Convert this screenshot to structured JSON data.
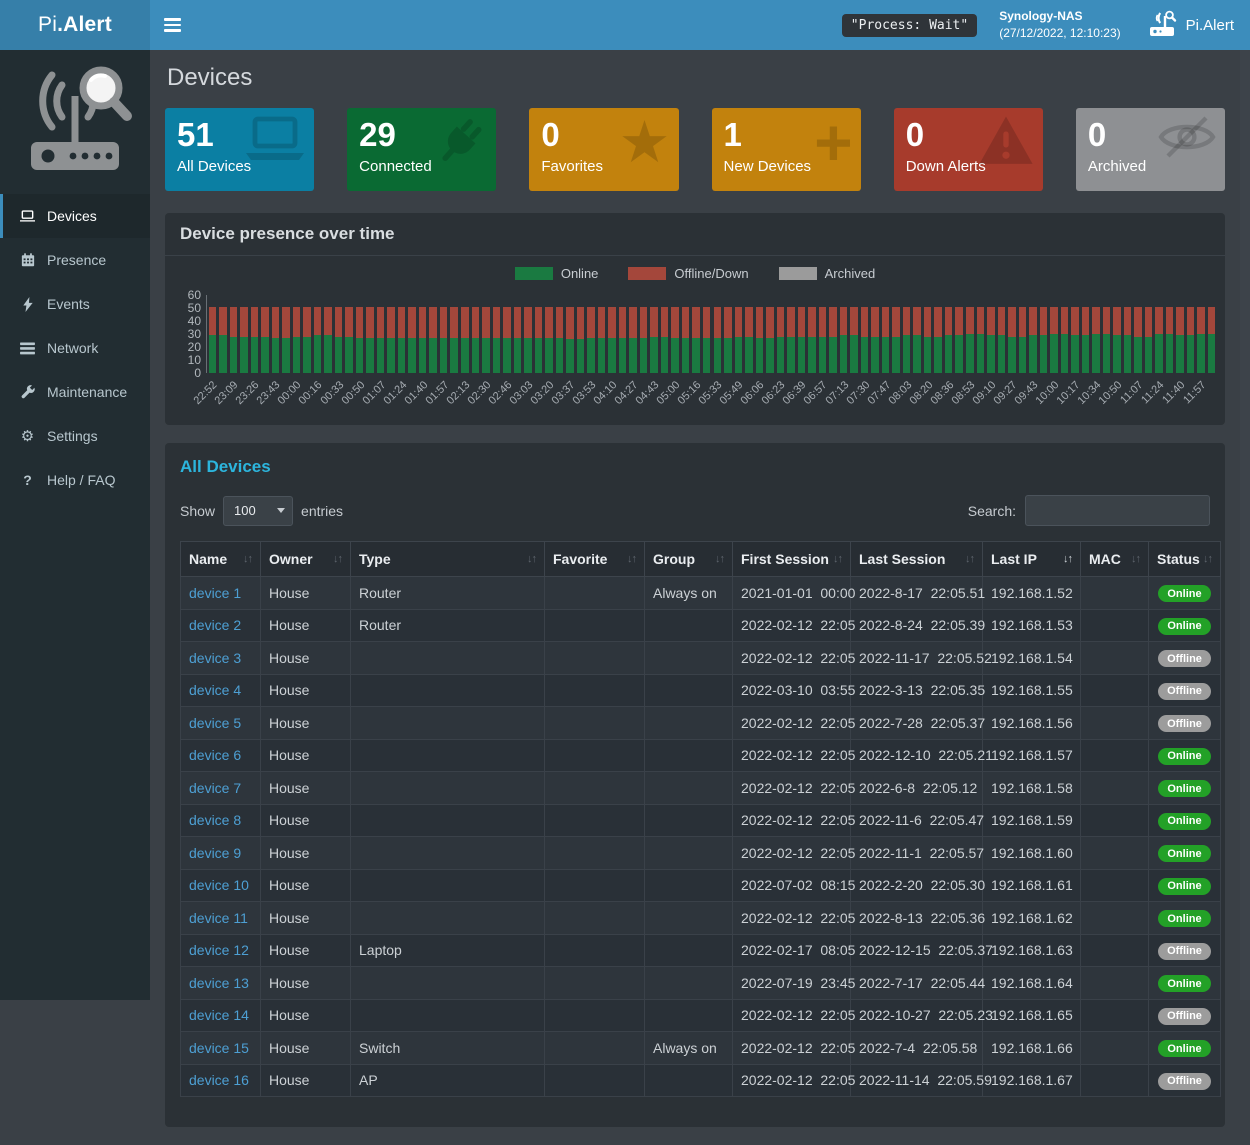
{
  "header": {
    "logo_prefix": "Pi",
    "logo_suffix": ".Alert",
    "process_badge": "\"Process: Wait\"",
    "nas_name": "Synology-NAS",
    "nas_time": "(27/12/2022, 12:10:23)",
    "brand": "Pi.Alert"
  },
  "sidebar": {
    "items": [
      {
        "label": "Devices",
        "icon": "laptop-icon",
        "active": true
      },
      {
        "label": "Presence",
        "icon": "calendar-icon",
        "active": false
      },
      {
        "label": "Events",
        "icon": "bolt-icon",
        "active": false
      },
      {
        "label": "Network",
        "icon": "network-icon",
        "active": false
      },
      {
        "label": "Maintenance",
        "icon": "wrench-icon",
        "active": false
      },
      {
        "label": "Settings",
        "icon": "gear-icon",
        "active": false
      },
      {
        "label": "Help / FAQ",
        "icon": "question-icon",
        "active": false
      }
    ]
  },
  "page": {
    "title": "Devices"
  },
  "cards": [
    {
      "value": "51",
      "label": "All Devices",
      "color": "#0b7fa3",
      "icon": "laptop-icon"
    },
    {
      "value": "29",
      "label": "Connected",
      "color": "#0a6a33",
      "icon": "plug-icon"
    },
    {
      "value": "0",
      "label": "Favorites",
      "color": "#c2820d",
      "icon": "star-icon"
    },
    {
      "value": "1",
      "label": "New Devices",
      "color": "#c2820d",
      "icon": "plus-icon"
    },
    {
      "value": "0",
      "label": "Down Alerts",
      "color": "#a73b2c",
      "icon": "warning-icon"
    },
    {
      "value": "0",
      "label": "Archived",
      "color": "#8e9093",
      "icon": "eye-slash-icon"
    }
  ],
  "chart_panel": {
    "title": "Device presence over time"
  },
  "chart_data": {
    "type": "bar",
    "stacked": true,
    "title": "Device presence over time",
    "legend_position": "top-center",
    "ylim": [
      0,
      60
    ],
    "yticks": [
      0,
      10,
      20,
      30,
      40,
      50,
      60
    ],
    "tick_every": 2,
    "x_tick_labels": [
      "22:52",
      "23:09",
      "23:26",
      "23:43",
      "00:00",
      "00:16",
      "00:33",
      "00:50",
      "01:07",
      "01:24",
      "01:40",
      "01:57",
      "02:13",
      "02:30",
      "02:46",
      "03:03",
      "03:20",
      "03:37",
      "03:53",
      "04:10",
      "04:27",
      "04:43",
      "05:00",
      "05:16",
      "05:33",
      "05:49",
      "06:06",
      "06:23",
      "06:39",
      "06:57",
      "07:13",
      "07:30",
      "07:47",
      "08:03",
      "08:20",
      "08:36",
      "08:53",
      "09:10",
      "09:27",
      "09:43",
      "10:00",
      "10:17",
      "10:34",
      "10:50",
      "11:07",
      "11:24",
      "11:40",
      "11:57"
    ],
    "series": [
      {
        "name": "Online",
        "color": "#1a7a41",
        "values": [
          29,
          29,
          28,
          28,
          28,
          28,
          27,
          27,
          28,
          28,
          29,
          29,
          28,
          28,
          27,
          27,
          27,
          27,
          27,
          27,
          27,
          27,
          27,
          27,
          27,
          27,
          27,
          27,
          27,
          27,
          27,
          27,
          27,
          27,
          26,
          26,
          27,
          27,
          27,
          27,
          27,
          27,
          28,
          28,
          27,
          27,
          27,
          27,
          27,
          27,
          28,
          28,
          27,
          27,
          28,
          28,
          28,
          28,
          28,
          28,
          29,
          29,
          28,
          28,
          28,
          28,
          29,
          29,
          28,
          28,
          29,
          29,
          30,
          30,
          29,
          29,
          28,
          28,
          29,
          29,
          30,
          30,
          29,
          29,
          30,
          30,
          29,
          29,
          28,
          28,
          30,
          30,
          29,
          29,
          30,
          30
        ]
      },
      {
        "name": "Offline/Down",
        "color": "#a4473b",
        "values": [
          22,
          22,
          23,
          23,
          23,
          23,
          24,
          24,
          23,
          23,
          22,
          22,
          23,
          23,
          24,
          24,
          24,
          24,
          24,
          24,
          24,
          24,
          24,
          24,
          24,
          24,
          24,
          24,
          24,
          24,
          24,
          24,
          24,
          24,
          25,
          25,
          24,
          24,
          24,
          24,
          24,
          24,
          23,
          23,
          24,
          24,
          24,
          24,
          24,
          24,
          23,
          23,
          24,
          24,
          23,
          23,
          23,
          23,
          23,
          23,
          22,
          22,
          23,
          23,
          23,
          23,
          22,
          22,
          23,
          23,
          22,
          22,
          21,
          21,
          22,
          22,
          23,
          23,
          22,
          22,
          21,
          21,
          22,
          22,
          21,
          21,
          22,
          22,
          23,
          23,
          21,
          21,
          22,
          22,
          21,
          21
        ]
      },
      {
        "name": "Archived",
        "color": "#9b9b9b",
        "values": [
          0,
          0,
          0,
          0,
          0,
          0,
          0,
          0,
          0,
          0,
          0,
          0,
          0,
          0,
          0,
          0,
          0,
          0,
          0,
          0,
          0,
          0,
          0,
          0,
          0,
          0,
          0,
          0,
          0,
          0,
          0,
          0,
          0,
          0,
          0,
          0,
          0,
          0,
          0,
          0,
          0,
          0,
          0,
          0,
          0,
          0,
          0,
          0,
          0,
          0,
          0,
          0,
          0,
          0,
          0,
          0,
          0,
          0,
          0,
          0,
          0,
          0,
          0,
          0,
          0,
          0,
          0,
          0,
          0,
          0,
          0,
          0,
          0,
          0,
          0,
          0,
          0,
          0,
          0,
          0,
          0,
          0,
          0,
          0,
          0,
          0,
          0,
          0,
          0,
          0,
          0,
          0,
          0,
          0,
          0,
          0
        ]
      }
    ]
  },
  "table_panel": {
    "title": "All Devices",
    "show_label": "Show",
    "entries_label": "entries",
    "page_size": "100",
    "page_size_options": [
      "100"
    ],
    "search_label": "Search:",
    "search_value": "",
    "sorted_column": "Last IP",
    "columns": [
      {
        "label": "Name",
        "key": "name"
      },
      {
        "label": "Owner",
        "key": "owner"
      },
      {
        "label": "Type",
        "key": "type"
      },
      {
        "label": "Favorite",
        "key": "favorite"
      },
      {
        "label": "Group",
        "key": "group"
      },
      {
        "label": "First Session",
        "key": "first_session"
      },
      {
        "label": "Last Session",
        "key": "last_session"
      },
      {
        "label": "Last IP",
        "key": "last_ip"
      },
      {
        "label": "MAC",
        "key": "mac"
      },
      {
        "label": "Status",
        "key": "status"
      }
    ],
    "rows": [
      {
        "name": "device 1",
        "owner": "House",
        "type": "Router",
        "favorite": "",
        "group": "Always on",
        "first_session": "2021-01-01  00:00",
        "last_session": "2022-8-17  22:05.51",
        "last_ip": "192.168.1.52",
        "mac": "",
        "status": "Online"
      },
      {
        "name": "device 2",
        "owner": "House",
        "type": "Router",
        "favorite": "",
        "group": "",
        "first_session": "2022-02-12  22:05",
        "last_session": "2022-8-24  22:05.39",
        "last_ip": "192.168.1.53",
        "mac": "",
        "status": "Online"
      },
      {
        "name": "device 3",
        "owner": "House",
        "type": "",
        "favorite": "",
        "group": "",
        "first_session": "2022-02-12  22:05",
        "last_session": "2022-11-17  22:05.52",
        "last_ip": "192.168.1.54",
        "mac": "",
        "status": "Offline"
      },
      {
        "name": "device 4",
        "owner": "House",
        "type": "",
        "favorite": "",
        "group": "",
        "first_session": "2022-03-10  03:55",
        "last_session": "2022-3-13  22:05.35",
        "last_ip": "192.168.1.55",
        "mac": "",
        "status": "Offline"
      },
      {
        "name": "device 5",
        "owner": "House",
        "type": "",
        "favorite": "",
        "group": "",
        "first_session": "2022-02-12  22:05",
        "last_session": "2022-7-28  22:05.37",
        "last_ip": "192.168.1.56",
        "mac": "",
        "status": "Offline"
      },
      {
        "name": "device 6",
        "owner": "House",
        "type": "",
        "favorite": "",
        "group": "",
        "first_session": "2022-02-12  22:05",
        "last_session": "2022-12-10  22:05.21",
        "last_ip": "192.168.1.57",
        "mac": "",
        "status": "Online"
      },
      {
        "name": "device 7",
        "owner": "House",
        "type": "",
        "favorite": "",
        "group": "",
        "first_session": "2022-02-12  22:05",
        "last_session": "2022-6-8  22:05.12",
        "last_ip": "192.168.1.58",
        "mac": "",
        "status": "Online"
      },
      {
        "name": "device 8",
        "owner": "House",
        "type": "",
        "favorite": "",
        "group": "",
        "first_session": "2022-02-12  22:05",
        "last_session": "2022-11-6  22:05.47",
        "last_ip": "192.168.1.59",
        "mac": "",
        "status": "Online"
      },
      {
        "name": "device 9",
        "owner": "House",
        "type": "",
        "favorite": "",
        "group": "",
        "first_session": "2022-02-12  22:05",
        "last_session": "2022-11-1  22:05.57",
        "last_ip": "192.168.1.60",
        "mac": "",
        "status": "Online"
      },
      {
        "name": "device 10",
        "owner": "House",
        "type": "",
        "favorite": "",
        "group": "",
        "first_session": "2022-07-02  08:15",
        "last_session": "2022-2-20  22:05.30",
        "last_ip": "192.168.1.61",
        "mac": "",
        "status": "Online"
      },
      {
        "name": "device 11",
        "owner": "House",
        "type": "",
        "favorite": "",
        "group": "",
        "first_session": "2022-02-12  22:05",
        "last_session": "2022-8-13  22:05.36",
        "last_ip": "192.168.1.62",
        "mac": "",
        "status": "Online"
      },
      {
        "name": "device 12",
        "owner": "House",
        "type": "Laptop",
        "favorite": "",
        "group": "",
        "first_session": "2022-02-17  08:05",
        "last_session": "2022-12-15  22:05.37",
        "last_ip": "192.168.1.63",
        "mac": "",
        "status": "Offline"
      },
      {
        "name": "device 13",
        "owner": "House",
        "type": "",
        "favorite": "",
        "group": "",
        "first_session": "2022-07-19  23:45",
        "last_session": "2022-7-17  22:05.44",
        "last_ip": "192.168.1.64",
        "mac": "",
        "status": "Online"
      },
      {
        "name": "device 14",
        "owner": "House",
        "type": "",
        "favorite": "",
        "group": "",
        "first_session": "2022-02-12  22:05",
        "last_session": "2022-10-27  22:05.23",
        "last_ip": "192.168.1.65",
        "mac": "",
        "status": "Offline"
      },
      {
        "name": "device 15",
        "owner": "House",
        "type": "Switch",
        "favorite": "",
        "group": "Always on",
        "first_session": "2022-02-12  22:05",
        "last_session": "2022-7-4  22:05.58",
        "last_ip": "192.168.1.66",
        "mac": "",
        "status": "Online"
      },
      {
        "name": "device 16",
        "owner": "House",
        "type": "AP",
        "favorite": "",
        "group": "",
        "first_session": "2022-02-12  22:05",
        "last_session": "2022-11-14  22:05.59",
        "last_ip": "192.168.1.67",
        "mac": "",
        "status": "Offline"
      }
    ]
  },
  "status_colors": {
    "Online": "#23a127",
    "Offline": "#9c9c9c"
  }
}
